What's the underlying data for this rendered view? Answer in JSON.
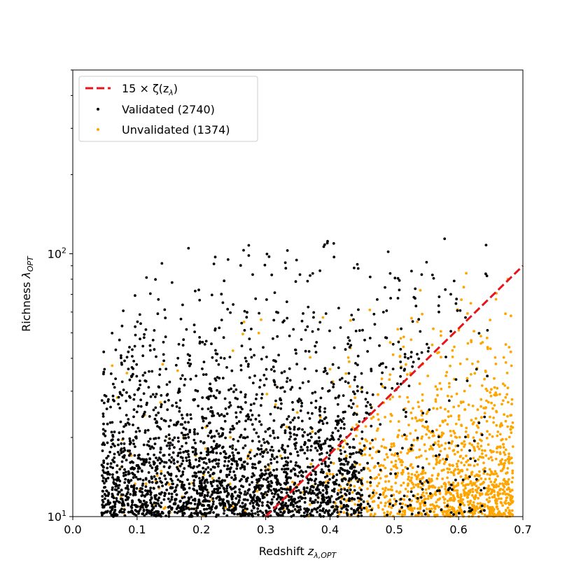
{
  "chart_data": {
    "type": "scatter",
    "xlabel_main": "Redshift ",
    "xlabel_var": "z",
    "xlabel_sub": "λ,OPT",
    "ylabel_main": "Richness ",
    "ylabel_var": "λ",
    "ylabel_sub": "OPT",
    "xlim": [
      0.0,
      0.7
    ],
    "ylim": [
      10,
      500
    ],
    "yscale": "log",
    "x_ticks": [
      "0.0",
      "0.1",
      "0.2",
      "0.3",
      "0.4",
      "0.5",
      "0.6",
      "0.7"
    ],
    "y_ticks": [
      {
        "value": 10,
        "base": "10",
        "exp": "1"
      },
      {
        "value": 100,
        "base": "10",
        "exp": "2"
      }
    ],
    "legend_position": "top-left",
    "grid": false,
    "line": {
      "name": "15 × ζ(z",
      "name_sub": "λ",
      "name_end": ")",
      "color": "#e8141c",
      "style": "dashed",
      "x": [
        0.3,
        0.7
      ],
      "y": [
        10.0,
        90.0
      ]
    },
    "series": [
      {
        "name": "Validated (2740)",
        "color": "#000000",
        "count": 2740
      },
      {
        "name": "Unvalidated (1374)",
        "color": "#ffa500",
        "count": 1374
      }
    ]
  }
}
